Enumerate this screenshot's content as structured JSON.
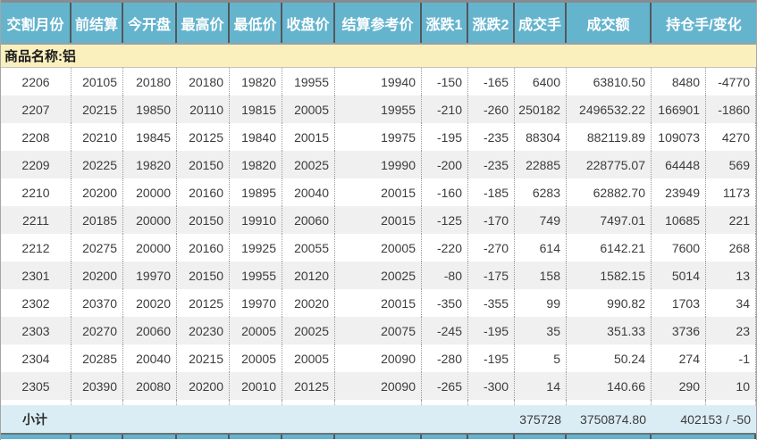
{
  "table": {
    "columns": [
      "交割月份",
      "前结算",
      "今开盘",
      "最高价",
      "最低价",
      "收盘价",
      "结算参考价",
      "涨跌1",
      "涨跌2",
      "成交手",
      "成交额",
      "持仓手/变化"
    ],
    "group_label": "商品名称:铝",
    "rows": [
      [
        "2206",
        "20105",
        "20180",
        "20180",
        "19820",
        "19955",
        "19940",
        "-150",
        "-165",
        "6400",
        "63810.50",
        "8480",
        "-4770"
      ],
      [
        "2207",
        "20215",
        "19850",
        "20110",
        "19815",
        "20005",
        "19955",
        "-210",
        "-260",
        "250182",
        "2496532.22",
        "166901",
        "-1860"
      ],
      [
        "2208",
        "20210",
        "19845",
        "20125",
        "19840",
        "20015",
        "19975",
        "-195",
        "-235",
        "88304",
        "882119.89",
        "109073",
        "4270"
      ],
      [
        "2209",
        "20225",
        "19820",
        "20150",
        "19820",
        "20025",
        "19990",
        "-200",
        "-235",
        "22885",
        "228775.07",
        "64448",
        "569"
      ],
      [
        "2210",
        "20200",
        "20000",
        "20160",
        "19895",
        "20040",
        "20015",
        "-160",
        "-185",
        "6283",
        "62882.70",
        "23949",
        "1173"
      ],
      [
        "2211",
        "20185",
        "20000",
        "20150",
        "19910",
        "20060",
        "20015",
        "-125",
        "-170",
        "749",
        "7497.01",
        "10685",
        "221"
      ],
      [
        "2212",
        "20275",
        "20000",
        "20160",
        "19925",
        "20055",
        "20005",
        "-220",
        "-270",
        "614",
        "6142.21",
        "7600",
        "268"
      ],
      [
        "2301",
        "20200",
        "19970",
        "20150",
        "19955",
        "20120",
        "20025",
        "-80",
        "-175",
        "158",
        "1582.15",
        "5014",
        "13"
      ],
      [
        "2302",
        "20370",
        "20020",
        "20125",
        "19970",
        "20020",
        "20015",
        "-350",
        "-355",
        "99",
        "990.82",
        "1703",
        "34"
      ],
      [
        "2303",
        "20270",
        "20060",
        "20230",
        "20005",
        "20025",
        "20075",
        "-245",
        "-195",
        "35",
        "351.33",
        "3736",
        "23"
      ],
      [
        "2304",
        "20285",
        "20040",
        "20215",
        "20005",
        "20005",
        "20090",
        "-280",
        "-195",
        "5",
        "50.24",
        "274",
        "-1"
      ],
      [
        "2305",
        "20390",
        "20080",
        "20200",
        "20010",
        "20125",
        "20090",
        "-265",
        "-300",
        "14",
        "140.66",
        "290",
        "10"
      ]
    ],
    "subtotal": {
      "label": "小计",
      "volume_total": "375728",
      "turnover_total": "3750874.80",
      "open_interest_total": "402153 / -50"
    }
  },
  "colors": {
    "header_bg": "#65B4CE",
    "header_text": "#FFFFFF",
    "group_row_bg": "#FAF0BE",
    "alt_row_bg": "#F0F0F0",
    "subtotal_bg": "#DBEDF4",
    "data_text": "#3C3C3C",
    "header_separator": "#54585B"
  }
}
